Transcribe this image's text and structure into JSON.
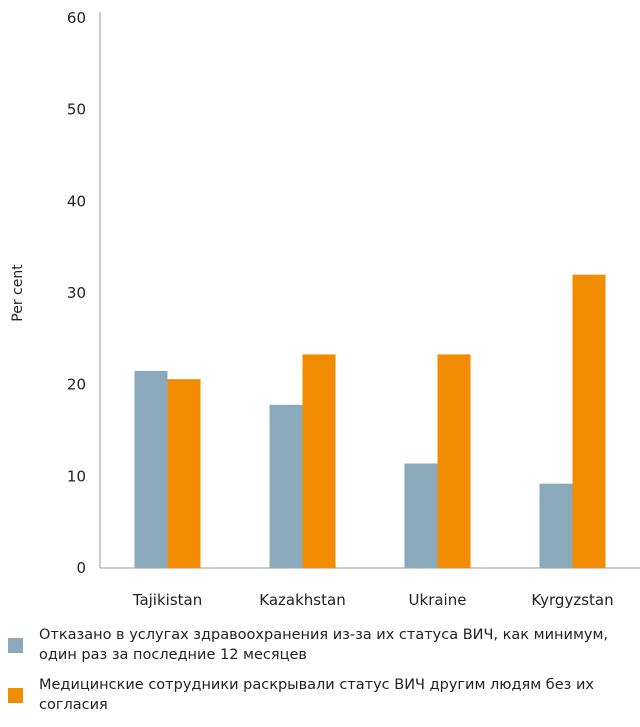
{
  "chart_data": {
    "type": "bar",
    "categories": [
      "Tajikistan",
      "Kazakhstan",
      "Ukraine",
      "Kyrgyzstan"
    ],
    "series": [
      {
        "name": "Отказано в услугах здравоохранения из-за их статуса ВИЧ, как минимум, один раз за последние 12 месяцев",
        "values": [
          21.5,
          17.8,
          11.4,
          9.2
        ],
        "color": "#8aa9bb"
      },
      {
        "name": "Медицинские сотрудники раскрывали статус ВИЧ другим людям без их согласия",
        "values": [
          20.6,
          23.3,
          23.3,
          32.0
        ],
        "color": "#f28c00"
      }
    ],
    "title": "",
    "xlabel": "",
    "ylabel": "Per cent",
    "ylim": [
      0,
      60
    ],
    "yticks": [
      0,
      10,
      20,
      30,
      40,
      50,
      60
    ],
    "grid": false,
    "legend_position": "bottom"
  },
  "legend": {
    "items": [
      {
        "label": "Отказано в услугах здравоохранения из-за их статуса ВИЧ, как минимум, один раз за последние 12 месяцев",
        "color": "#8aa9bb"
      },
      {
        "label": "Медицинские сотрудники раскрывали статус ВИЧ другим людям без их согласия",
        "color": "#f28c00"
      }
    ]
  }
}
